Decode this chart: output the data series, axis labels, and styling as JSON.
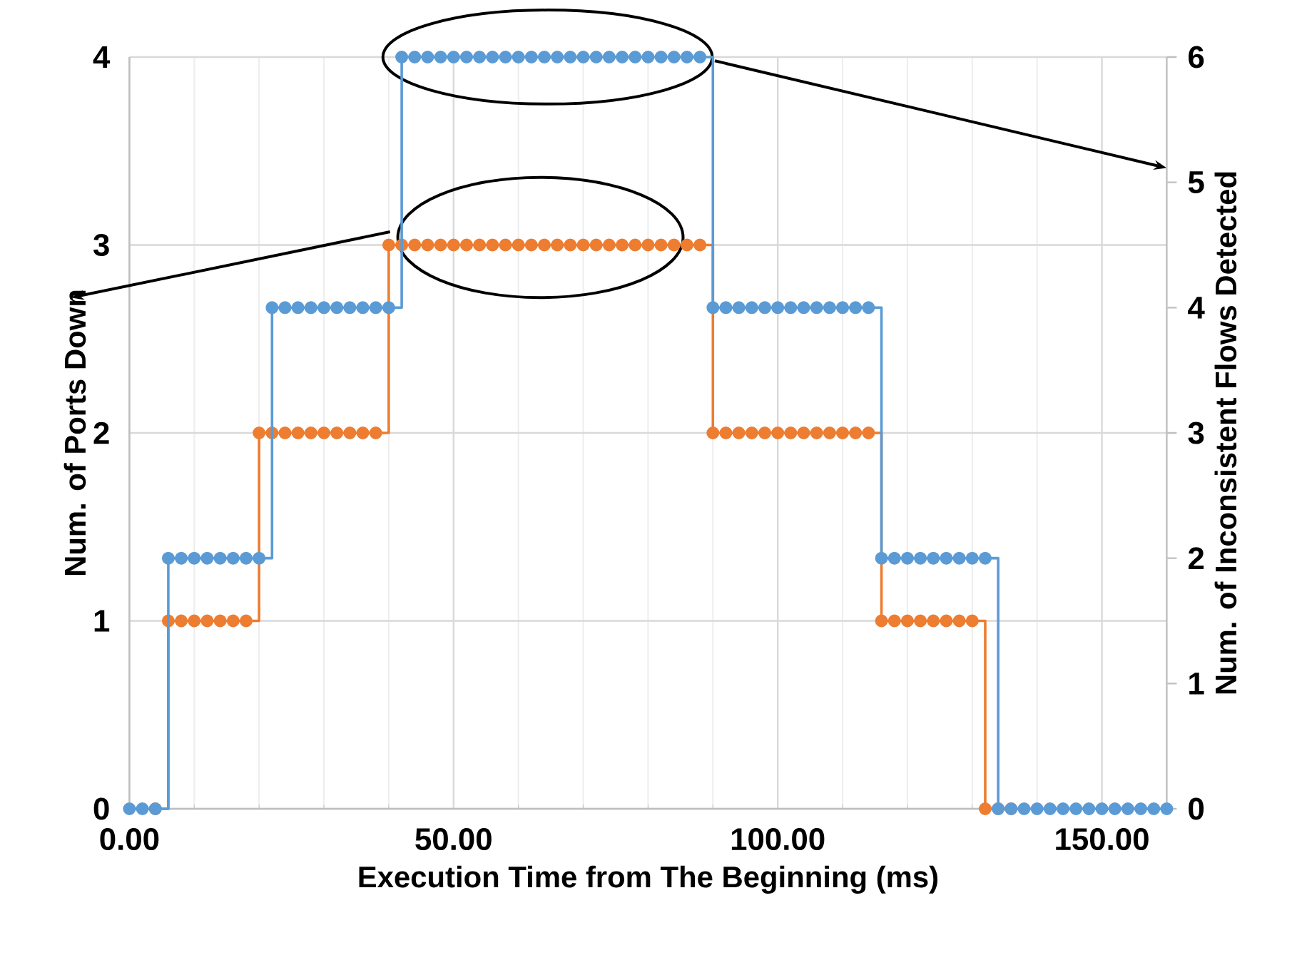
{
  "chart_data": {
    "type": "step",
    "xlabel": "Execution Time from The Beginning (ms)",
    "ylabel": "Num. of Ports Down",
    "y2label": "Num. of Inconsistent Flows Detected",
    "x": [
      0,
      2,
      4,
      6,
      8,
      10,
      12,
      14,
      16,
      18,
      20,
      22,
      24,
      26,
      28,
      30,
      32,
      34,
      36,
      38,
      40,
      42,
      44,
      46,
      48,
      50,
      52,
      54,
      56,
      58,
      60,
      62,
      64,
      66,
      68,
      70,
      72,
      74,
      76,
      78,
      80,
      82,
      84,
      86,
      88,
      90,
      92,
      94,
      96,
      98,
      100,
      102,
      104,
      106,
      108,
      110,
      112,
      114,
      116,
      118,
      120,
      122,
      124,
      126,
      128,
      130,
      132,
      134,
      136,
      138,
      140,
      142,
      144,
      146,
      148,
      150,
      152,
      154,
      156,
      158,
      160
    ],
    "series": [
      {
        "color": "#ed7d31",
        "axis": "y",
        "values": [
          null,
          null,
          0,
          1,
          1,
          1,
          1,
          1,
          1,
          1,
          2,
          2,
          2,
          2,
          2,
          2,
          2,
          2,
          2,
          2,
          3,
          3,
          3,
          3,
          3,
          3,
          3,
          3,
          3,
          3,
          3,
          3,
          3,
          3,
          3,
          3,
          3,
          3,
          3,
          3,
          3,
          3,
          3,
          3,
          3,
          2,
          2,
          2,
          2,
          2,
          2,
          2,
          2,
          2,
          2,
          2,
          2,
          2,
          1,
          1,
          1,
          1,
          1,
          1,
          1,
          1,
          0,
          0,
          0,
          null,
          null,
          null,
          null,
          null,
          null,
          null,
          null,
          null,
          null,
          null,
          null
        ]
      },
      {
        "color": "#5b9bd5",
        "axis": "y2",
        "values": [
          0,
          0,
          0,
          2,
          2,
          2,
          2,
          2,
          2,
          2,
          2,
          4,
          4,
          4,
          4,
          4,
          4,
          4,
          4,
          4,
          4,
          6,
          6,
          6,
          6,
          6,
          6,
          6,
          6,
          6,
          6,
          6,
          6,
          6,
          6,
          6,
          6,
          6,
          6,
          6,
          6,
          6,
          6,
          6,
          6,
          4,
          4,
          4,
          4,
          4,
          4,
          4,
          4,
          4,
          4,
          4,
          4,
          4,
          2,
          2,
          2,
          2,
          2,
          2,
          2,
          2,
          2,
          0,
          0,
          0,
          0,
          0,
          0,
          0,
          0,
          0,
          0,
          0,
          0,
          0,
          0
        ]
      }
    ],
    "xlim": [
      0,
      160
    ],
    "xticks": [
      {
        "value": 0,
        "label": "0.00"
      },
      {
        "value": 50,
        "label": "50.00"
      },
      {
        "value": 100,
        "label": "100.00"
      },
      {
        "value": 150,
        "label": "150.00"
      }
    ],
    "ylim": [
      0,
      4
    ],
    "yticks": [
      0,
      1,
      2,
      3,
      4
    ],
    "y2lim": [
      0,
      6
    ],
    "y2ticks": [
      0,
      1,
      2,
      3,
      4,
      5,
      6
    ],
    "grid": true,
    "marker": "circle",
    "line_style": "solid"
  }
}
